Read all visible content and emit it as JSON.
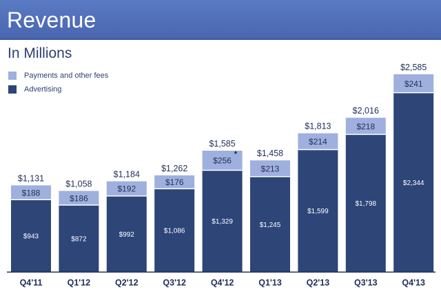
{
  "header": {
    "title": "Revenue"
  },
  "subtitle": "In Millions",
  "legend": [
    {
      "label": "Payments and other fees",
      "color": "#9fb0df"
    },
    {
      "label": "Advertising",
      "color": "#2d4577"
    }
  ],
  "chart_data": {
    "type": "bar",
    "stacked": true,
    "title": "Revenue",
    "subtitle": "In Millions",
    "categories": [
      "Q4'11",
      "Q1'12",
      "Q2'12",
      "Q3'12",
      "Q4'12",
      "Q1'13",
      "Q2'13",
      "Q3'13",
      "Q4'13"
    ],
    "series": [
      {
        "name": "Advertising",
        "color": "#2d4577",
        "values": [
          943,
          872,
          992,
          1086,
          1329,
          1245,
          1599,
          1798,
          2344
        ],
        "labels": [
          "$943",
          "$872",
          "$992",
          "$1,086",
          "$1,329",
          "$1,245",
          "$1,599",
          "$1,798",
          "$2,344"
        ]
      },
      {
        "name": "Payments and other fees",
        "color": "#9fb0df",
        "values": [
          188,
          186,
          192,
          176,
          256,
          213,
          214,
          218,
          241
        ],
        "labels": [
          "$188",
          "$186",
          "$192",
          "$176",
          "$256",
          "$213",
          "$214",
          "$218",
          "$241"
        ]
      }
    ],
    "totals": [
      1131,
      1058,
      1184,
      1262,
      1585,
      1458,
      1813,
      2016,
      2585
    ],
    "total_labels": [
      "$1,131",
      "$1,058",
      "$1,184",
      "$1,262",
      "$1,585",
      "$1,458",
      "$1,813",
      "$2,016",
      "$2,585"
    ],
    "annotations": [
      {
        "category": "Q4'12",
        "text": "*"
      }
    ],
    "xlabel": "",
    "ylabel": "",
    "ylim": [
      0,
      2585
    ],
    "grid": false,
    "legend_position": "top-left"
  }
}
